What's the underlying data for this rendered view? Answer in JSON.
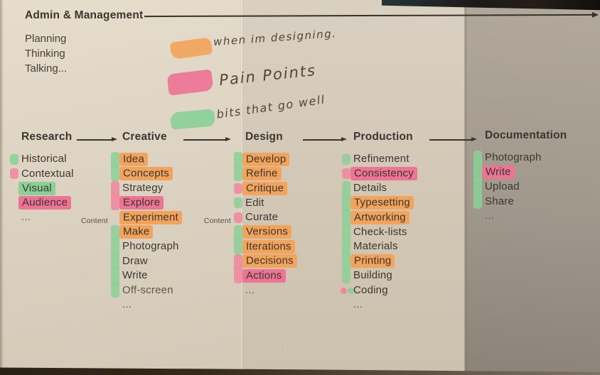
{
  "admin": {
    "title": "Admin & Management",
    "items": [
      "Planning",
      "Thinking",
      "Talking..."
    ]
  },
  "legend": [
    {
      "swatch": "orange",
      "note": "when im designing."
    },
    {
      "swatch": "pink",
      "note": "Pain Points"
    },
    {
      "swatch": "green",
      "note": "bits that go well"
    }
  ],
  "columns": [
    {
      "title": "Research",
      "items": [
        {
          "label": "Historical",
          "mark": "green"
        },
        {
          "label": "Contextual",
          "mark": "pink"
        },
        {
          "label": "Visual",
          "highlight": "green"
        },
        {
          "label": "Audience",
          "highlight": "pink"
        },
        {
          "label": "..."
        }
      ]
    },
    {
      "title": "Creative",
      "items": [
        {
          "label": "Idea",
          "mark": "green",
          "highlight": "orange"
        },
        {
          "label": "Concepts",
          "mark": "green",
          "highlight": "orange"
        },
        {
          "label": "Strategy",
          "mark": "pink"
        },
        {
          "label": "Explore",
          "mark": "pink",
          "highlight": "pink"
        },
        {
          "label": "Experiment",
          "highlight": "orange",
          "side_label": "Content"
        },
        {
          "label": "Make",
          "mark": "green",
          "highlight": "orange"
        },
        {
          "label": "Photograph",
          "mark": "green"
        },
        {
          "label": "Draw",
          "mark": "green"
        },
        {
          "label": "Write",
          "mark": "green"
        },
        {
          "label": "Off-screen",
          "mark": "green",
          "muted": true
        },
        {
          "label": "..."
        }
      ]
    },
    {
      "title": "Design",
      "items": [
        {
          "label": "Develop",
          "mark": "green",
          "highlight": "orange"
        },
        {
          "label": "Refine",
          "mark": "green",
          "highlight": "orange"
        },
        {
          "label": "Critique",
          "mark": "pink",
          "highlight": "orange"
        },
        {
          "label": "Edit",
          "mark": "green"
        },
        {
          "label": "Curate",
          "mark": "pink",
          "side_label": "Content"
        },
        {
          "label": "Versions",
          "mark": "green",
          "highlight": "orange"
        },
        {
          "label": "Iterations",
          "mark": "green",
          "highlight": "orange"
        },
        {
          "label": "Decisions",
          "mark": "pink",
          "highlight": "orange"
        },
        {
          "label": "Actions",
          "mark": "pink",
          "highlight": "pink"
        },
        {
          "label": "..."
        }
      ]
    },
    {
      "title": "Production",
      "items": [
        {
          "label": "Refinement",
          "mark": "green"
        },
        {
          "label": "Consistency",
          "mark": "pink",
          "highlight": "pink"
        },
        {
          "label": "Details",
          "mark": "green"
        },
        {
          "label": "Typesetting",
          "mark": "green",
          "highlight": "orange"
        },
        {
          "label": "Artworking",
          "mark": "green",
          "highlight": "orange"
        },
        {
          "label": "Check-lists",
          "mark": "green"
        },
        {
          "label": "Materials",
          "mark": "green"
        },
        {
          "label": "Printing",
          "mark": "green",
          "highlight": "orange"
        },
        {
          "label": "Building",
          "mark": "green"
        },
        {
          "label": "Coding",
          "mark": "dots"
        },
        {
          "label": "..."
        }
      ]
    },
    {
      "title": "Documentation",
      "items": [
        {
          "label": "Photograph",
          "mark": "green"
        },
        {
          "label": "Write",
          "mark": "green",
          "highlight": "pink"
        },
        {
          "label": "Upload",
          "mark": "green"
        },
        {
          "label": "Share",
          "mark": "green"
        },
        {
          "label": "..."
        }
      ]
    }
  ],
  "colors": {
    "orange": "#f2a45c",
    "pink": "#ed7495",
    "pink_soft": "#f0879d",
    "green": "#8bd097",
    "ink": "#3a3630",
    "handwriting_ink": "#4d463c"
  }
}
